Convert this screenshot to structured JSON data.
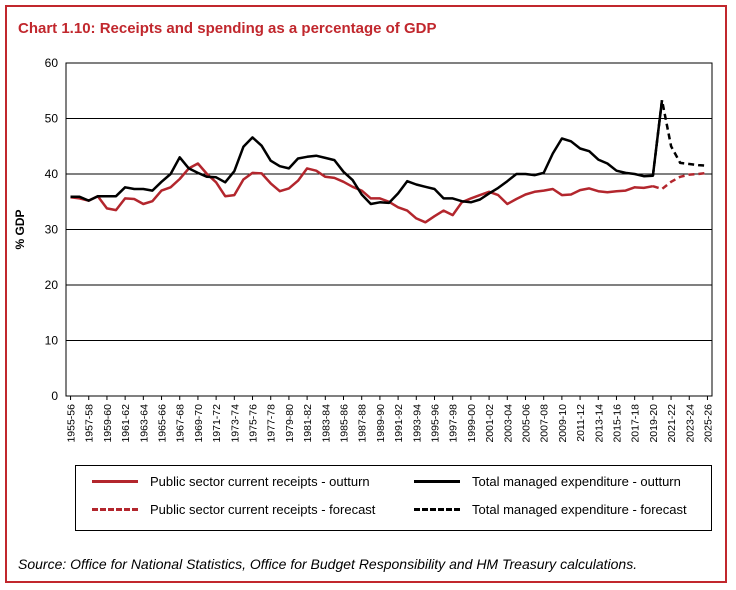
{
  "chart_title": "Chart 1.10: Receipts and spending as a percentage of GDP",
  "source": "Source: Office for National Statistics, Office for Budget Responsibility and HM Treasury calculations.",
  "colors": {
    "receipts": "#b3262d",
    "expenditure": "#000000",
    "border": "#c1272d"
  },
  "chart_data": {
    "type": "line",
    "title": "Chart 1.10: Receipts and spending as a percentage of GDP",
    "ylabel": "% GDP",
    "xlabel": "",
    "ylim": [
      0,
      60
    ],
    "yticks": [
      0,
      10,
      20,
      30,
      40,
      50,
      60
    ],
    "grid": "horizontal",
    "legend_position": "bottom",
    "x_tick_labels": [
      "1955-56",
      "1957-58",
      "1959-60",
      "1961-62",
      "1963-64",
      "1965-66",
      "1967-68",
      "1969-70",
      "1971-72",
      "1973-74",
      "1975-76",
      "1977-78",
      "1979-80",
      "1981-82",
      "1983-84",
      "1985-86",
      "1987-88",
      "1989-90",
      "1991-92",
      "1993-94",
      "1995-96",
      "1997-98",
      "1999-00",
      "2001-02",
      "2003-04",
      "2005-06",
      "2007-08",
      "2009-10",
      "2011-12",
      "2013-14",
      "2015-16",
      "2017-18",
      "2019-20",
      "2021-22",
      "2023-24",
      "2025-26"
    ],
    "series": [
      {
        "name": "Public sector current receipts - outturn",
        "style": "solid",
        "color": "#b3262d",
        "x": [
          "1955-56",
          "1956-57",
          "1957-58",
          "1958-59",
          "1959-60",
          "1960-61",
          "1961-62",
          "1962-63",
          "1963-64",
          "1964-65",
          "1965-66",
          "1966-67",
          "1967-68",
          "1968-69",
          "1969-70",
          "1970-71",
          "1971-72",
          "1972-73",
          "1973-74",
          "1974-75",
          "1975-76",
          "1976-77",
          "1977-78",
          "1978-79",
          "1979-80",
          "1980-81",
          "1981-82",
          "1982-83",
          "1983-84",
          "1984-85",
          "1985-86",
          "1986-87",
          "1987-88",
          "1988-89",
          "1989-90",
          "1990-91",
          "1991-92",
          "1992-93",
          "1993-94",
          "1994-95",
          "1995-96",
          "1996-97",
          "1997-98",
          "1998-99",
          "1999-00",
          "2000-01",
          "2001-02",
          "2002-03",
          "2003-04",
          "2004-05",
          "2005-06",
          "2006-07",
          "2007-08",
          "2008-09",
          "2009-10",
          "2010-11",
          "2011-12",
          "2012-13",
          "2013-14",
          "2014-15",
          "2015-16",
          "2016-17",
          "2017-18",
          "2018-19",
          "2019-20"
        ],
        "values": [
          35.8,
          35.6,
          35.2,
          36.0,
          33.8,
          33.5,
          35.6,
          35.5,
          34.6,
          35.1,
          37.0,
          37.6,
          39.1,
          41.0,
          41.9,
          40.0,
          38.5,
          36.0,
          36.2,
          39.0,
          40.2,
          40.1,
          38.3,
          36.9,
          37.4,
          38.8,
          41.0,
          40.6,
          39.5,
          39.3,
          38.6,
          37.7,
          37.0,
          35.6,
          35.6,
          35.0,
          34.0,
          33.4,
          32.0,
          31.3,
          32.4,
          33.4,
          32.6,
          34.9,
          35.6,
          36.2,
          36.8,
          36.2,
          34.6,
          35.5,
          36.3,
          36.8,
          37.0,
          37.3,
          36.2,
          36.3,
          37.1,
          37.4,
          36.9,
          36.7,
          36.9,
          37.0,
          37.6,
          37.5,
          37.8
        ]
      },
      {
        "name": "Total managed expenditure - outturn",
        "style": "solid",
        "color": "#000000",
        "x": [
          "1955-56",
          "1956-57",
          "1957-58",
          "1958-59",
          "1959-60",
          "1960-61",
          "1961-62",
          "1962-63",
          "1963-64",
          "1964-65",
          "1965-66",
          "1966-67",
          "1967-68",
          "1968-69",
          "1969-70",
          "1970-71",
          "1971-72",
          "1972-73",
          "1973-74",
          "1974-75",
          "1975-76",
          "1976-77",
          "1977-78",
          "1978-79",
          "1979-80",
          "1980-81",
          "1981-82",
          "1982-83",
          "1983-84",
          "1984-85",
          "1985-86",
          "1986-87",
          "1987-88",
          "1988-89",
          "1989-90",
          "1990-91",
          "1991-92",
          "1992-93",
          "1993-94",
          "1994-95",
          "1995-96",
          "1996-97",
          "1997-98",
          "1998-99",
          "1999-00",
          "2000-01",
          "2001-02",
          "2002-03",
          "2003-04",
          "2004-05",
          "2005-06",
          "2006-07",
          "2007-08",
          "2008-09",
          "2009-10",
          "2010-11",
          "2011-12",
          "2012-13",
          "2013-14",
          "2014-15",
          "2015-16",
          "2016-17",
          "2017-18",
          "2018-19",
          "2019-20",
          "2020-21"
        ],
        "values": [
          35.9,
          35.9,
          35.2,
          36.0,
          36.0,
          36.0,
          37.6,
          37.3,
          37.3,
          37.0,
          38.6,
          40.0,
          43.0,
          41.0,
          40.2,
          39.5,
          39.4,
          38.5,
          40.5,
          44.9,
          46.6,
          45.1,
          42.4,
          41.4,
          41.0,
          42.8,
          43.1,
          43.3,
          42.9,
          42.5,
          40.4,
          38.9,
          36.3,
          34.6,
          34.9,
          34.8,
          36.5,
          38.7,
          38.1,
          37.7,
          37.3,
          35.6,
          35.6,
          35.1,
          34.9,
          35.4,
          36.5,
          37.5,
          38.7,
          40.0,
          40.0,
          39.8,
          40.2,
          43.7,
          46.4,
          45.9,
          44.6,
          44.1,
          42.6,
          41.9,
          40.6,
          40.2,
          40.0,
          39.6,
          39.7,
          53.3
        ]
      },
      {
        "name": "Public sector current receipts - forecast",
        "style": "dashed",
        "color": "#b3262d",
        "x": [
          "2019-20",
          "2020-21",
          "2021-22",
          "2022-23",
          "2023-24",
          "2024-25",
          "2025-26"
        ],
        "values": [
          37.8,
          37.3,
          38.6,
          39.5,
          39.9,
          40.0,
          40.2
        ]
      },
      {
        "name": "Total managed expenditure - forecast",
        "style": "dashed",
        "color": "#000000",
        "x": [
          "2019-20",
          "2020-21",
          "2021-22",
          "2022-23",
          "2023-24",
          "2024-25",
          "2025-26"
        ],
        "values": [
          39.7,
          53.3,
          45.0,
          42.0,
          41.8,
          41.6,
          41.5
        ]
      }
    ]
  }
}
